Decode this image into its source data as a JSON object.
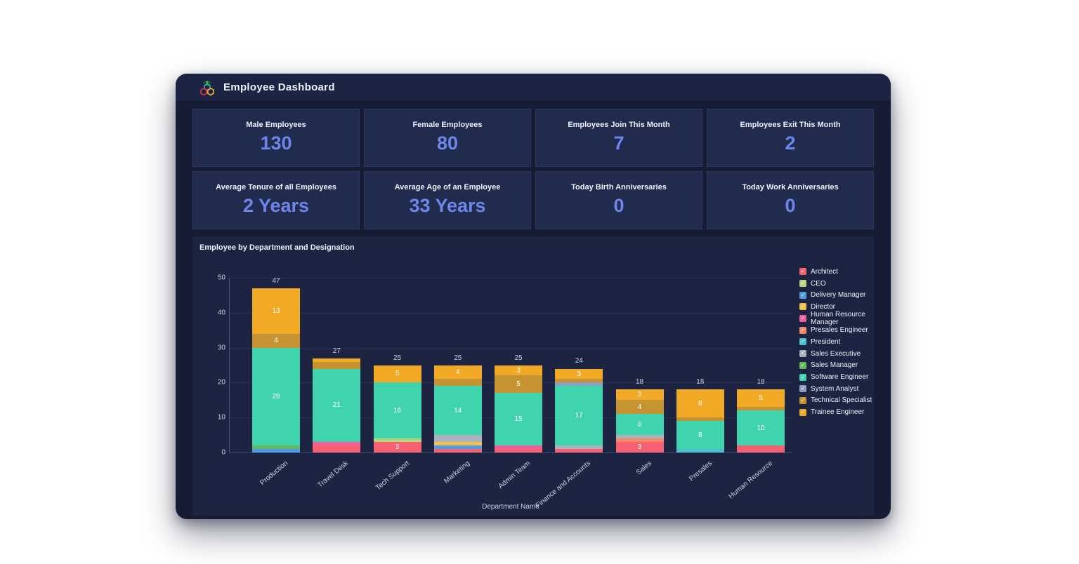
{
  "colors": {
    "page-bg": "#ffffff",
    "shell-bg": "#151c33",
    "header-bg": "#1c2444",
    "card-bg": "#212b4d",
    "card-border": "#2c3760",
    "panel-bg": "#1c2442",
    "kpi-value": "#6e86ea",
    "text-bright": "#eef1f8",
    "text-muted": "#c9d1e4",
    "grid-line": "#2b3458",
    "axis-line": "#45517d"
  },
  "header": {
    "title": "Employee Dashboard",
    "logo": "people-hexagons-logo"
  },
  "kpi_cards": [
    {
      "label": "Male Employees",
      "value": "130"
    },
    {
      "label": "Female Employees",
      "value": "80"
    },
    {
      "label": "Employees Join This Month",
      "value": "7"
    },
    {
      "label": "Employees Exit This Month",
      "value": "2"
    },
    {
      "label": "Average Tenure of all Employees",
      "value": "2 Years"
    },
    {
      "label": "Average Age of an Employee",
      "value": "33 Years"
    },
    {
      "label": "Today Birth Anniversaries",
      "value": "0"
    },
    {
      "label": "Today Work Anniversaries",
      "value": "0"
    }
  ],
  "chart_data": {
    "type": "bar",
    "stacked": true,
    "title": "Employee by Department and Designation",
    "xlabel": "Department Name",
    "ylabel": "",
    "ylim": [
      0,
      50
    ],
    "yticks": [
      0,
      10,
      20,
      30,
      40,
      50
    ],
    "grid": true,
    "legend_position": "right",
    "categories": [
      "Production",
      "Travel Desk",
      "Tech Support",
      "Marketing",
      "Admin Team",
      "Finance and Accounts",
      "Sales",
      "Presales",
      "Human Resource"
    ],
    "totals": [
      47,
      27,
      25,
      25,
      25,
      24,
      18,
      18,
      18
    ],
    "legend": [
      {
        "label": "Architect",
        "color": "#f5616f"
      },
      {
        "label": "CEO",
        "color": "#b5d77d"
      },
      {
        "label": "Delivery Manager",
        "color": "#4e9be4"
      },
      {
        "label": "Director",
        "color": "#f2c14d"
      },
      {
        "label": "Human Resource Manager",
        "color": "#f0609e"
      },
      {
        "label": "Presales Engineer",
        "color": "#f58a66"
      },
      {
        "label": "President",
        "color": "#4cc0cb"
      },
      {
        "label": "Sales Executive",
        "color": "#aab2bd"
      },
      {
        "label": "Sales Manager",
        "color": "#62ba5f"
      },
      {
        "label": "Software Engineer",
        "color": "#3fd4ae"
      },
      {
        "label": "System Analyst",
        "color": "#8e9fc4"
      },
      {
        "label": "Technical Specialist",
        "color": "#c59330"
      },
      {
        "label": "Trainee Engineer",
        "color": "#f2aa26"
      }
    ],
    "bars": [
      {
        "department": "Production",
        "total": 47,
        "segments": [
          {
            "designation": "Delivery Manager",
            "value": 1
          },
          {
            "designation": "Sales Manager",
            "value": 1
          },
          {
            "designation": "Software Engineer",
            "value": 28
          },
          {
            "designation": "Technical Specialist",
            "value": 4
          },
          {
            "designation": "Trainee Engineer",
            "value": 13
          }
        ]
      },
      {
        "department": "Travel Desk",
        "total": 27,
        "segments": [
          {
            "designation": "Architect",
            "value": 2
          },
          {
            "designation": "Human Resource Manager",
            "value": 1
          },
          {
            "designation": "Software Engineer",
            "value": 21
          },
          {
            "designation": "Technical Specialist",
            "value": 2
          },
          {
            "designation": "Trainee Engineer",
            "value": 1
          }
        ]
      },
      {
        "department": "Tech Support",
        "total": 25,
        "segments": [
          {
            "designation": "Architect",
            "value": 3
          },
          {
            "designation": "CEO",
            "value": 1
          },
          {
            "designation": "Software Engineer",
            "value": 16
          },
          {
            "designation": "Trainee Engineer",
            "value": 5
          }
        ]
      },
      {
        "department": "Marketing",
        "total": 25,
        "segments": [
          {
            "designation": "Architect",
            "value": 1
          },
          {
            "designation": "Delivery Manager",
            "value": 1
          },
          {
            "designation": "Director",
            "value": 1
          },
          {
            "designation": "Sales Executive",
            "value": 2
          },
          {
            "designation": "Software Engineer",
            "value": 14
          },
          {
            "designation": "Technical Specialist",
            "value": 2
          },
          {
            "designation": "Trainee Engineer",
            "value": 4
          }
        ]
      },
      {
        "department": "Admin Team",
        "total": 25,
        "segments": [
          {
            "designation": "Architect",
            "value": 1
          },
          {
            "designation": "Human Resource Manager",
            "value": 1
          },
          {
            "designation": "Software Engineer",
            "value": 15
          },
          {
            "designation": "Technical Specialist",
            "value": 5
          },
          {
            "designation": "Trainee Engineer",
            "value": 3
          }
        ]
      },
      {
        "department": "Finance and Accounts",
        "total": 24,
        "segments": [
          {
            "designation": "Architect",
            "value": 1
          },
          {
            "designation": "Sales Executive",
            "value": 1
          },
          {
            "designation": "Software Engineer",
            "value": 17
          },
          {
            "designation": "System Analyst",
            "value": 1
          },
          {
            "designation": "Technical Specialist",
            "value": 1
          },
          {
            "designation": "Trainee Engineer",
            "value": 3
          }
        ]
      },
      {
        "department": "Sales",
        "total": 18,
        "segments": [
          {
            "designation": "Architect",
            "value": 3
          },
          {
            "designation": "Presales Engineer",
            "value": 1
          },
          {
            "designation": "Sales Executive",
            "value": 1
          },
          {
            "designation": "Software Engineer",
            "value": 6
          },
          {
            "designation": "Technical Specialist",
            "value": 4
          },
          {
            "designation": "Trainee Engineer",
            "value": 3
          }
        ]
      },
      {
        "department": "Presales",
        "total": 18,
        "segments": [
          {
            "designation": "President",
            "value": 1
          },
          {
            "designation": "Software Engineer",
            "value": 8
          },
          {
            "designation": "Technical Specialist",
            "value": 1
          },
          {
            "designation": "Trainee Engineer",
            "value": 8
          }
        ]
      },
      {
        "department": "Human Resource",
        "total": 18,
        "segments": [
          {
            "designation": "Architect",
            "value": 2
          },
          {
            "designation": "Software Engineer",
            "value": 10
          },
          {
            "designation": "Technical Specialist",
            "value": 1
          },
          {
            "designation": "Trainee Engineer",
            "value": 5
          }
        ]
      }
    ]
  }
}
